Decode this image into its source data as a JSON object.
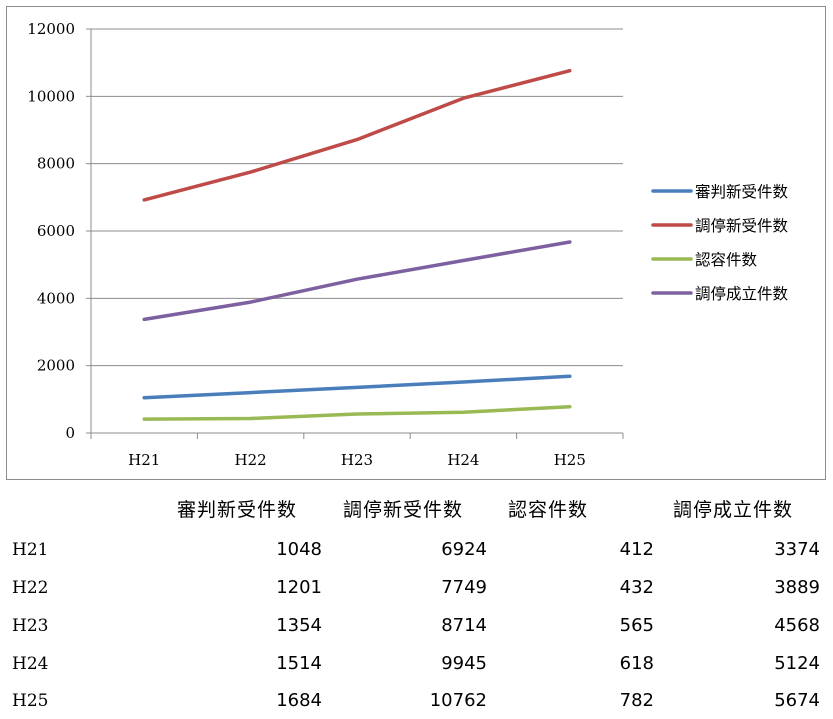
{
  "chart_data": {
    "type": "line",
    "categories": [
      "H21",
      "H22",
      "H23",
      "H24",
      "H25"
    ],
    "ylim": [
      0,
      12000
    ],
    "yticks": [
      0,
      2000,
      4000,
      6000,
      8000,
      10000,
      12000
    ],
    "grid": true,
    "legend_position": "right",
    "series": [
      {
        "name": "審判新受件数",
        "color": "#4a7ebb",
        "values": [
          1048,
          1201,
          1354,
          1514,
          1684
        ]
      },
      {
        "name": "調停新受件数",
        "color": "#be4b48",
        "values": [
          6924,
          7749,
          8714,
          9945,
          10762
        ]
      },
      {
        "name": "認容件数",
        "color": "#98b954",
        "values": [
          412,
          432,
          565,
          618,
          782
        ]
      },
      {
        "name": "調停成立件数",
        "color": "#7d60a0",
        "values": [
          3374,
          3889,
          4568,
          5124,
          5674
        ]
      }
    ]
  },
  "table": {
    "headers": [
      "審判新受件数",
      "調停新受件数",
      "認容件数",
      "調停成立件数"
    ],
    "rows": [
      {
        "label": "H21",
        "values": [
          "1048",
          "6924",
          "412",
          "3374"
        ]
      },
      {
        "label": "H22",
        "values": [
          "1201",
          "7749",
          "432",
          "3889"
        ]
      },
      {
        "label": "H23",
        "values": [
          "1354",
          "8714",
          "565",
          "4568"
        ]
      },
      {
        "label": "H24",
        "values": [
          "1514",
          "9945",
          "618",
          "5124"
        ]
      },
      {
        "label": "H25",
        "values": [
          "1684",
          "10762",
          "782",
          "5674"
        ]
      }
    ]
  }
}
